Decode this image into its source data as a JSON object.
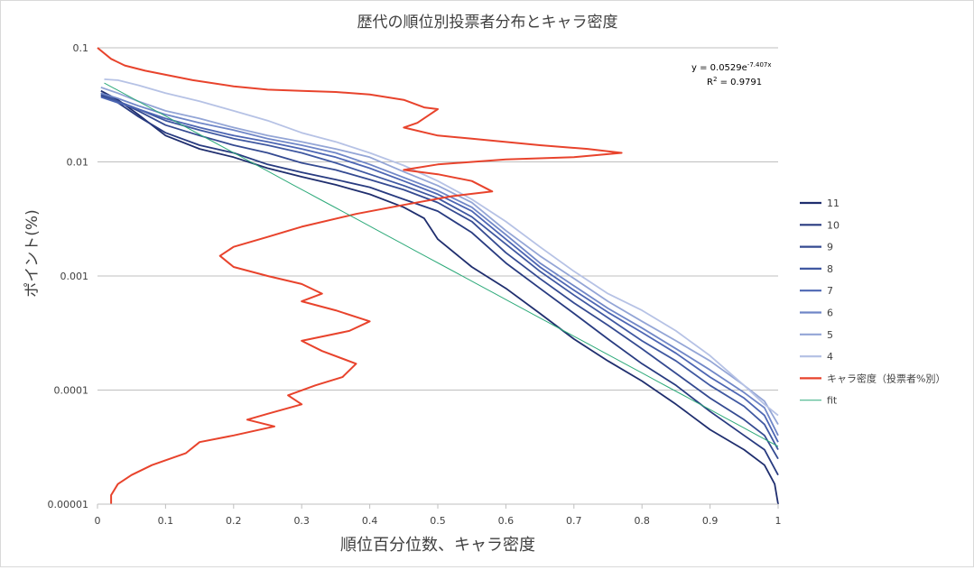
{
  "chart_data": {
    "type": "line",
    "title": "歴代の順位別投票者分布とキャラ密度",
    "xlabel": "順位百分位数、キャラ密度",
    "ylabel": "ポイント(%)",
    "xlim": [
      0,
      1
    ],
    "ylim": [
      1e-05,
      0.1
    ],
    "yscale": "log",
    "grid": "horizontal",
    "legend_position": "right",
    "x_ticks": [
      "0",
      "0.1",
      "0.2",
      "0.3",
      "0.4",
      "0.5",
      "0.6",
      "0.7",
      "0.8",
      "0.9",
      "1"
    ],
    "y_ticks": [
      {
        "value": 0.1,
        "label": "0.1"
      },
      {
        "value": 0.01,
        "label": "0.01"
      },
      {
        "value": 0.001,
        "label": "0.001"
      },
      {
        "value": 0.0001,
        "label": "0.0001"
      },
      {
        "value": 1e-05,
        "label": "0.00001"
      }
    ],
    "annotation": {
      "equation_prefix": "y = 0.0529e",
      "equation_exponent": "-7.407x",
      "r2_prefix": "R",
      "r2_sup": "2",
      "r2_value": " = 0.9791"
    },
    "series": [
      {
        "name": "11",
        "color": "#1f2e6e",
        "points": [
          [
            0.005,
            0.042
          ],
          [
            0.03,
            0.035
          ],
          [
            0.06,
            0.026
          ],
          [
            0.1,
            0.017
          ],
          [
            0.15,
            0.013
          ],
          [
            0.2,
            0.011
          ],
          [
            0.25,
            0.0088
          ],
          [
            0.3,
            0.0074
          ],
          [
            0.35,
            0.0063
          ],
          [
            0.4,
            0.0052
          ],
          [
            0.45,
            0.004
          ],
          [
            0.48,
            0.0032
          ],
          [
            0.5,
            0.0021
          ],
          [
            0.55,
            0.0012
          ],
          [
            0.6,
            0.00078
          ],
          [
            0.65,
            0.00047
          ],
          [
            0.7,
            0.00028
          ],
          [
            0.75,
            0.00018
          ],
          [
            0.8,
            0.00012
          ],
          [
            0.85,
            7.5e-05
          ],
          [
            0.9,
            4.5e-05
          ],
          [
            0.95,
            3e-05
          ],
          [
            0.98,
            2.2e-05
          ],
          [
            0.995,
            1.5e-05
          ],
          [
            1.0,
            1e-05
          ]
        ]
      },
      {
        "name": "10",
        "color": "#283b80",
        "points": [
          [
            0.005,
            0.038
          ],
          [
            0.03,
            0.033
          ],
          [
            0.06,
            0.025
          ],
          [
            0.1,
            0.018
          ],
          [
            0.15,
            0.014
          ],
          [
            0.2,
            0.012
          ],
          [
            0.25,
            0.0095
          ],
          [
            0.3,
            0.0081
          ],
          [
            0.35,
            0.007
          ],
          [
            0.4,
            0.006
          ],
          [
            0.45,
            0.0047
          ],
          [
            0.5,
            0.0037
          ],
          [
            0.55,
            0.0024
          ],
          [
            0.6,
            0.0013
          ],
          [
            0.65,
            0.00078
          ],
          [
            0.7,
            0.00047
          ],
          [
            0.75,
            0.00028
          ],
          [
            0.8,
            0.00017
          ],
          [
            0.85,
            0.00011
          ],
          [
            0.9,
            6.5e-05
          ],
          [
            0.95,
            4e-05
          ],
          [
            0.98,
            3e-05
          ],
          [
            1.0,
            1.8e-05
          ]
        ]
      },
      {
        "name": "9",
        "color": "#344a91",
        "points": [
          [
            0.005,
            0.04
          ],
          [
            0.03,
            0.034
          ],
          [
            0.06,
            0.028
          ],
          [
            0.1,
            0.021
          ],
          [
            0.15,
            0.017
          ],
          [
            0.2,
            0.014
          ],
          [
            0.25,
            0.012
          ],
          [
            0.3,
            0.0098
          ],
          [
            0.35,
            0.0085
          ],
          [
            0.4,
            0.007
          ],
          [
            0.45,
            0.0057
          ],
          [
            0.5,
            0.0044
          ],
          [
            0.55,
            0.003
          ],
          [
            0.6,
            0.0016
          ],
          [
            0.65,
            0.00095
          ],
          [
            0.7,
            0.00058
          ],
          [
            0.75,
            0.00037
          ],
          [
            0.8,
            0.00023
          ],
          [
            0.85,
            0.00014
          ],
          [
            0.9,
            8.5e-05
          ],
          [
            0.95,
            5.5e-05
          ],
          [
            0.98,
            4e-05
          ],
          [
            1.0,
            2.5e-05
          ]
        ]
      },
      {
        "name": "8",
        "color": "#3f58a1",
        "points": [
          [
            0.005,
            0.039
          ],
          [
            0.03,
            0.034
          ],
          [
            0.06,
            0.029
          ],
          [
            0.1,
            0.023
          ],
          [
            0.15,
            0.019
          ],
          [
            0.2,
            0.016
          ],
          [
            0.25,
            0.014
          ],
          [
            0.3,
            0.012
          ],
          [
            0.35,
            0.0098
          ],
          [
            0.4,
            0.0078
          ],
          [
            0.45,
            0.0062
          ],
          [
            0.5,
            0.0048
          ],
          [
            0.55,
            0.0033
          ],
          [
            0.6,
            0.0019
          ],
          [
            0.65,
            0.0011
          ],
          [
            0.7,
            0.00068
          ],
          [
            0.75,
            0.00043
          ],
          [
            0.8,
            0.00027
          ],
          [
            0.85,
            0.00018
          ],
          [
            0.9,
            0.00011
          ],
          [
            0.95,
            7.2e-05
          ],
          [
            0.98,
            5e-05
          ],
          [
            1.0,
            3e-05
          ]
        ]
      },
      {
        "name": "7",
        "color": "#4d66b3",
        "points": [
          [
            0.005,
            0.037
          ],
          [
            0.03,
            0.033
          ],
          [
            0.06,
            0.029
          ],
          [
            0.1,
            0.024
          ],
          [
            0.15,
            0.02
          ],
          [
            0.2,
            0.017
          ],
          [
            0.25,
            0.015
          ],
          [
            0.3,
            0.013
          ],
          [
            0.35,
            0.011
          ],
          [
            0.4,
            0.0088
          ],
          [
            0.45,
            0.0068
          ],
          [
            0.5,
            0.0052
          ],
          [
            0.55,
            0.0037
          ],
          [
            0.6,
            0.0021
          ],
          [
            0.65,
            0.0012
          ],
          [
            0.7,
            0.00075
          ],
          [
            0.75,
            0.00048
          ],
          [
            0.8,
            0.00032
          ],
          [
            0.85,
            0.00021
          ],
          [
            0.9,
            0.00013
          ],
          [
            0.95,
            8.5e-05
          ],
          [
            0.98,
            6e-05
          ],
          [
            1.0,
            3.5e-05
          ]
        ]
      },
      {
        "name": "6",
        "color": "#6f86c7",
        "points": [
          [
            0.005,
            0.04
          ],
          [
            0.03,
            0.036
          ],
          [
            0.06,
            0.031
          ],
          [
            0.1,
            0.026
          ],
          [
            0.15,
            0.022
          ],
          [
            0.2,
            0.019
          ],
          [
            0.25,
            0.016
          ],
          [
            0.3,
            0.014
          ],
          [
            0.35,
            0.012
          ],
          [
            0.4,
            0.0095
          ],
          [
            0.45,
            0.0073
          ],
          [
            0.5,
            0.0056
          ],
          [
            0.55,
            0.004
          ],
          [
            0.6,
            0.0023
          ],
          [
            0.65,
            0.0013
          ],
          [
            0.7,
            0.00082
          ],
          [
            0.75,
            0.00052
          ],
          [
            0.8,
            0.00035
          ],
          [
            0.85,
            0.00023
          ],
          [
            0.9,
            0.00015
          ],
          [
            0.95,
            9.5e-05
          ],
          [
            0.98,
            7e-05
          ],
          [
            1.0,
            4e-05
          ]
        ]
      },
      {
        "name": "5",
        "color": "#93a5d6",
        "points": [
          [
            0.005,
            0.045
          ],
          [
            0.03,
            0.04
          ],
          [
            0.06,
            0.034
          ],
          [
            0.1,
            0.028
          ],
          [
            0.15,
            0.024
          ],
          [
            0.2,
            0.02
          ],
          [
            0.25,
            0.017
          ],
          [
            0.3,
            0.015
          ],
          [
            0.35,
            0.013
          ],
          [
            0.4,
            0.011
          ],
          [
            0.45,
            0.0082
          ],
          [
            0.5,
            0.0062
          ],
          [
            0.55,
            0.0044
          ],
          [
            0.6,
            0.0025
          ],
          [
            0.65,
            0.0015
          ],
          [
            0.7,
            0.00095
          ],
          [
            0.75,
            0.0006
          ],
          [
            0.8,
            0.0004
          ],
          [
            0.85,
            0.00027
          ],
          [
            0.9,
            0.00018
          ],
          [
            0.95,
            0.00011
          ],
          [
            0.98,
            8e-05
          ],
          [
            1.0,
            5e-05
          ]
        ]
      },
      {
        "name": "4",
        "color": "#b6c2e5",
        "points": [
          [
            0.01,
            0.053
          ],
          [
            0.03,
            0.052
          ],
          [
            0.06,
            0.047
          ],
          [
            0.1,
            0.04
          ],
          [
            0.15,
            0.034
          ],
          [
            0.2,
            0.028
          ],
          [
            0.25,
            0.023
          ],
          [
            0.3,
            0.018
          ],
          [
            0.35,
            0.015
          ],
          [
            0.4,
            0.012
          ],
          [
            0.45,
            0.0093
          ],
          [
            0.5,
            0.0068
          ],
          [
            0.55,
            0.0047
          ],
          [
            0.6,
            0.003
          ],
          [
            0.65,
            0.0018
          ],
          [
            0.7,
            0.0011
          ],
          [
            0.75,
            0.0007
          ],
          [
            0.8,
            0.0005
          ],
          [
            0.85,
            0.00033
          ],
          [
            0.9,
            0.0002
          ],
          [
            0.95,
            0.00011
          ],
          [
            0.98,
            7.5e-05
          ],
          [
            1.0,
            6e-05
          ]
        ]
      },
      {
        "name": "キャラ密度（投票者%別）",
        "color": "#e8432c",
        "points": [
          [
            0.0,
            0.1
          ],
          [
            0.02,
            0.08
          ],
          [
            0.04,
            0.07
          ],
          [
            0.07,
            0.063
          ],
          [
            0.1,
            0.058
          ],
          [
            0.14,
            0.052
          ],
          [
            0.2,
            0.046
          ],
          [
            0.25,
            0.043
          ],
          [
            0.3,
            0.042
          ],
          [
            0.35,
            0.041
          ],
          [
            0.4,
            0.039
          ],
          [
            0.45,
            0.035
          ],
          [
            0.48,
            0.03
          ],
          [
            0.5,
            0.029
          ],
          [
            0.47,
            0.022
          ],
          [
            0.45,
            0.02
          ],
          [
            0.5,
            0.017
          ],
          [
            0.55,
            0.016
          ],
          [
            0.65,
            0.014
          ],
          [
            0.72,
            0.013
          ],
          [
            0.77,
            0.012
          ],
          [
            0.7,
            0.011
          ],
          [
            0.6,
            0.0105
          ],
          [
            0.5,
            0.0095
          ],
          [
            0.45,
            0.0085
          ],
          [
            0.5,
            0.0078
          ],
          [
            0.55,
            0.0068
          ],
          [
            0.58,
            0.0055
          ],
          [
            0.52,
            0.005
          ],
          [
            0.45,
            0.0042
          ],
          [
            0.38,
            0.0035
          ],
          [
            0.3,
            0.0027
          ],
          [
            0.25,
            0.0022
          ],
          [
            0.2,
            0.0018
          ],
          [
            0.18,
            0.0015
          ],
          [
            0.2,
            0.0012
          ],
          [
            0.25,
            0.001
          ],
          [
            0.3,
            0.00085
          ],
          [
            0.33,
            0.0007
          ],
          [
            0.3,
            0.0006
          ],
          [
            0.35,
            0.0005
          ],
          [
            0.4,
            0.0004
          ],
          [
            0.37,
            0.00033
          ],
          [
            0.3,
            0.00027
          ],
          [
            0.33,
            0.00022
          ],
          [
            0.38,
            0.00017
          ],
          [
            0.36,
            0.00013
          ],
          [
            0.32,
            0.00011
          ],
          [
            0.28,
            9e-05
          ],
          [
            0.3,
            7.5e-05
          ],
          [
            0.25,
            6.2e-05
          ],
          [
            0.22,
            5.5e-05
          ],
          [
            0.26,
            4.8e-05
          ],
          [
            0.2,
            4e-05
          ],
          [
            0.15,
            3.5e-05
          ],
          [
            0.13,
            2.8e-05
          ],
          [
            0.08,
            2.2e-05
          ],
          [
            0.05,
            1.8e-05
          ],
          [
            0.03,
            1.5e-05
          ],
          [
            0.02,
            1.2e-05
          ],
          [
            0.02,
            1e-05
          ]
        ]
      },
      {
        "name": "fit",
        "color": "#2eaa7a",
        "fit": {
          "a": 0.0529,
          "b": -7.407
        }
      }
    ]
  }
}
